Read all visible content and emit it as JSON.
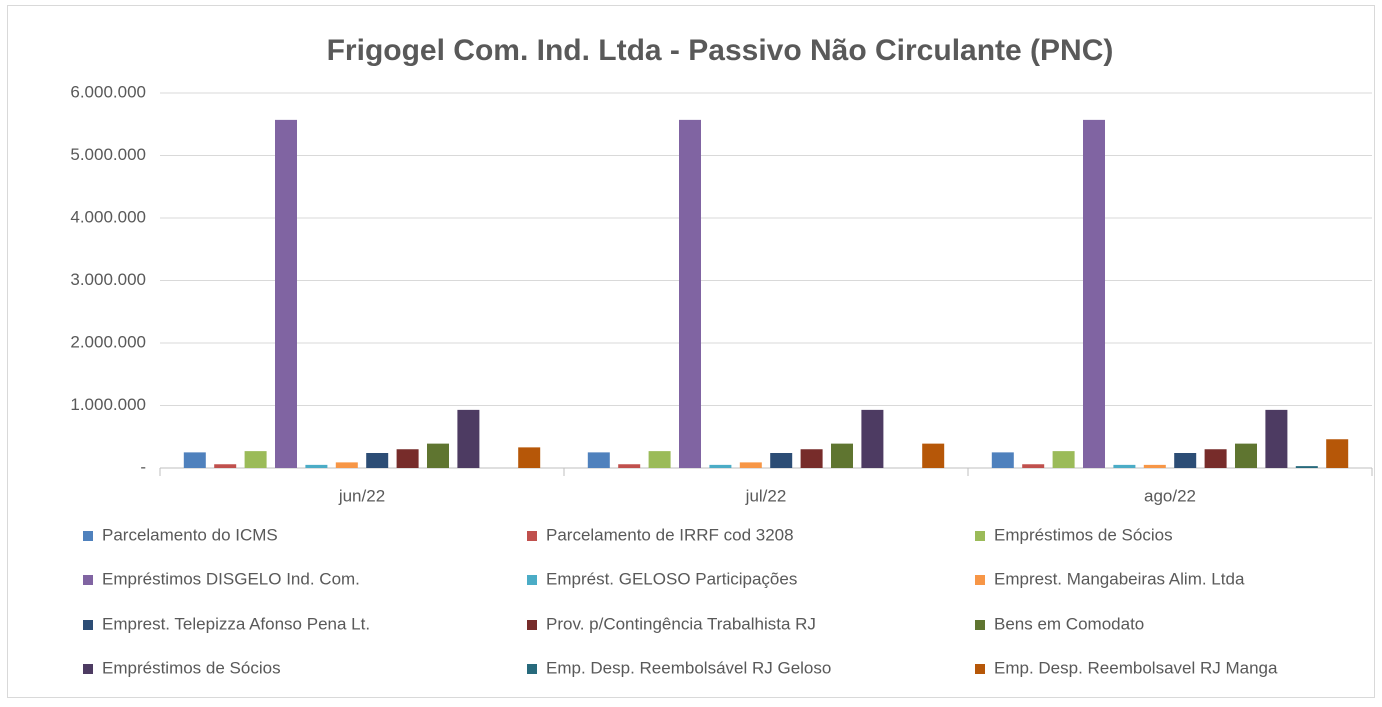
{
  "chart_data": {
    "type": "bar",
    "title": "Frigogel Com. Ind. Ltda - Passivo Não Circulante (PNC)",
    "categories": [
      "jun/22",
      "jul/22",
      "ago/22"
    ],
    "series": [
      {
        "name": "Parcelamento do ICMS",
        "color": "#4f81bd",
        "values": [
          250000,
          250000,
          250000
        ]
      },
      {
        "name": "Parcelamento de IRRF cod 3208",
        "color": "#c0504d",
        "values": [
          60000,
          60000,
          60000
        ]
      },
      {
        "name": "Empréstimos de Sócios",
        "color": "#9bbb59",
        "values": [
          270000,
          270000,
          270000
        ]
      },
      {
        "name": "Empréstimos DISGELO Ind. Com.",
        "color": "#8064a2",
        "values": [
          5570000,
          5570000,
          5570000
        ]
      },
      {
        "name": "Emprést. GELOSO Participações",
        "color": "#4bacc6",
        "values": [
          50000,
          50000,
          50000
        ]
      },
      {
        "name": "Emprest. Mangabeiras Alim. Ltda",
        "color": "#f79646",
        "values": [
          90000,
          90000,
          50000
        ]
      },
      {
        "name": "Emprest. Telepizza Afonso Pena Lt.",
        "color": "#2c4d75",
        "values": [
          240000,
          240000,
          240000
        ]
      },
      {
        "name": "Prov. p/Contingência Trabalhista RJ",
        "color": "#772c2a",
        "values": [
          300000,
          300000,
          300000
        ]
      },
      {
        "name": "Bens em Comodato",
        "color": "#5f7530",
        "values": [
          390000,
          390000,
          390000
        ]
      },
      {
        "name": "Empréstimos de Sócios",
        "color": "#4d3b62",
        "values": [
          930000,
          930000,
          930000
        ]
      },
      {
        "name": "Emp. Desp. Reembolsável RJ Geloso",
        "color": "#276a7c",
        "values": [
          0,
          0,
          30000
        ]
      },
      {
        "name": "Emp. Desp. Reembolsavel RJ Manga",
        "color": "#b65708",
        "values": [
          330000,
          390000,
          460000
        ]
      }
    ],
    "ylim": [
      0,
      6000000
    ],
    "yticks": [
      {
        "value": 0,
        "label": "-"
      },
      {
        "value": 1000000,
        "label": "1.000.000"
      },
      {
        "value": 2000000,
        "label": "2.000.000"
      },
      {
        "value": 3000000,
        "label": "3.000.000"
      },
      {
        "value": 4000000,
        "label": "4.000.000"
      },
      {
        "value": 5000000,
        "label": "5.000.000"
      },
      {
        "value": 6000000,
        "label": "6.000.000"
      }
    ],
    "grid": true
  }
}
